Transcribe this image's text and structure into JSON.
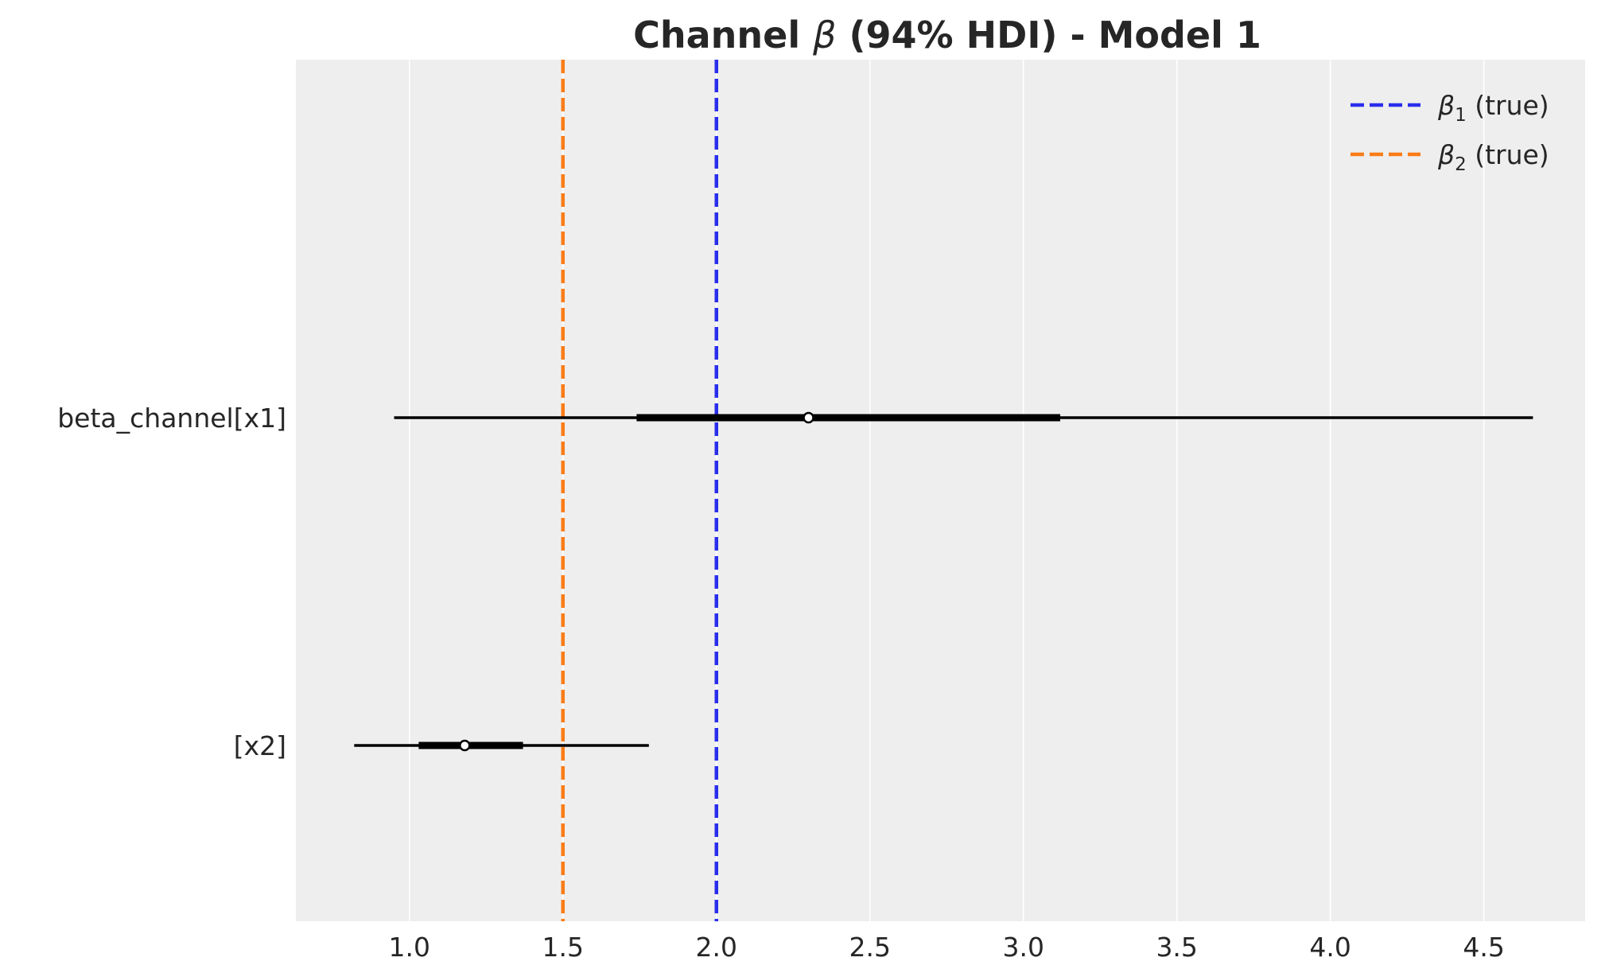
{
  "chart_data": {
    "type": "forest",
    "title_parts": {
      "before": "Channel ",
      "symbol": "β",
      "after": " (94% HDI) - Model 1"
    },
    "categories": [
      "beta_channel[x1]",
      "[x2]"
    ],
    "series": [
      {
        "label": "beta_channel[x1]",
        "hdi_94": [
          0.95,
          4.66
        ],
        "iqr": [
          1.74,
          3.12
        ],
        "point": 2.3
      },
      {
        "label": "[x2]",
        "hdi_94": [
          0.82,
          1.78
        ],
        "iqr": [
          1.03,
          1.37
        ],
        "point": 1.18
      }
    ],
    "xlim": [
      0.63,
      4.83
    ],
    "xticks": [
      1.0,
      1.5,
      2.0,
      2.5,
      3.0,
      3.5,
      4.0,
      4.5
    ],
    "xtick_labels": [
      "1.0",
      "1.5",
      "2.0",
      "2.5",
      "3.0",
      "3.5",
      "4.0",
      "4.5"
    ],
    "reference_lines": [
      {
        "value": 2.0,
        "color": "#2a2eec",
        "symbol": "β",
        "subscript": "1",
        "suffix": " (true)"
      },
      {
        "value": 1.5,
        "color": "#fa7c17",
        "symbol": "β",
        "subscript": "2",
        "suffix": " (true)"
      }
    ],
    "legend_position": "top-right",
    "grid": "vertical",
    "background": "#eeeeee",
    "interval_color": "#000000"
  }
}
